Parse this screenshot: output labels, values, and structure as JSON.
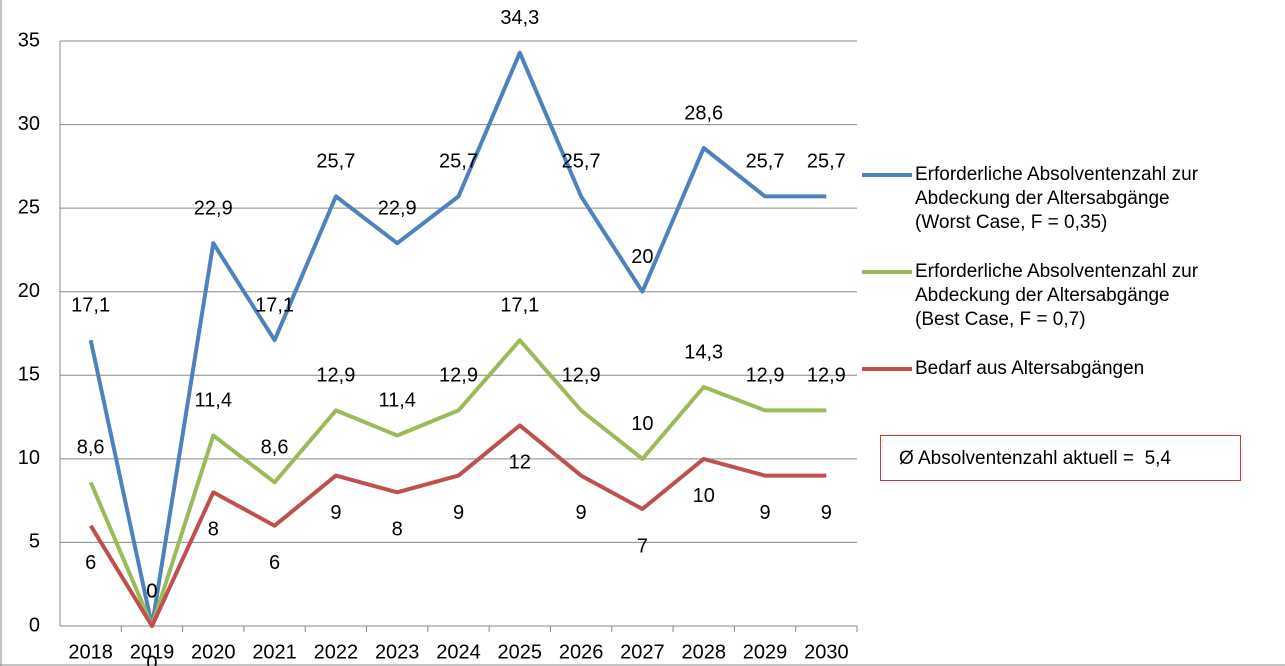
{
  "chart_data": {
    "type": "line",
    "categories": [
      "2018",
      "2019",
      "2020",
      "2021",
      "2022",
      "2023",
      "2024",
      "2025",
      "2026",
      "2027",
      "2028",
      "2029",
      "2030"
    ],
    "series": [
      {
        "name": "Erforderliche Absolventenzahl zur\nAbdeckung der Altersabgänge\n(Worst Case, F = 0,35)",
        "color": "#4f81bd",
        "values": [
          17.1,
          0,
          22.9,
          17.1,
          25.7,
          22.9,
          25.7,
          34.3,
          25.7,
          20,
          28.6,
          25.7,
          25.7
        ],
        "value_labels": [
          "17,1",
          "0",
          "22,9",
          "17,1",
          "25,7",
          "22,9",
          "25,7",
          "34,3",
          "25,7",
          "20",
          "28,6",
          "25,7",
          "25,7"
        ]
      },
      {
        "name": "Erforderliche Absolventenzahl zur\nAbdeckung der Altersabgänge\n(Best Case, F = 0,7)",
        "color": "#9bbb59",
        "values": [
          8.6,
          0,
          11.4,
          8.6,
          12.9,
          11.4,
          12.9,
          17.1,
          12.9,
          10,
          14.3,
          12.9,
          12.9
        ],
        "value_labels": [
          "8,6",
          "0",
          "11,4",
          "8,6",
          "12,9",
          "11,4",
          "12,9",
          "17,1",
          "12,9",
          "10",
          "14,3",
          "12,9",
          "12,9"
        ]
      },
      {
        "name": "Bedarf aus Altersabgängen",
        "color": "#c0504d",
        "values": [
          6,
          0,
          8,
          6,
          9,
          8,
          9,
          12,
          9,
          7,
          10,
          9,
          9
        ]
      }
    ],
    "ylim": [
      0,
      35
    ],
    "yticks": [
      0,
      5,
      10,
      15,
      20,
      25,
      30,
      35
    ],
    "grid": true,
    "annotation": "Ø Absolventenzahl aktuell =  5,4"
  }
}
